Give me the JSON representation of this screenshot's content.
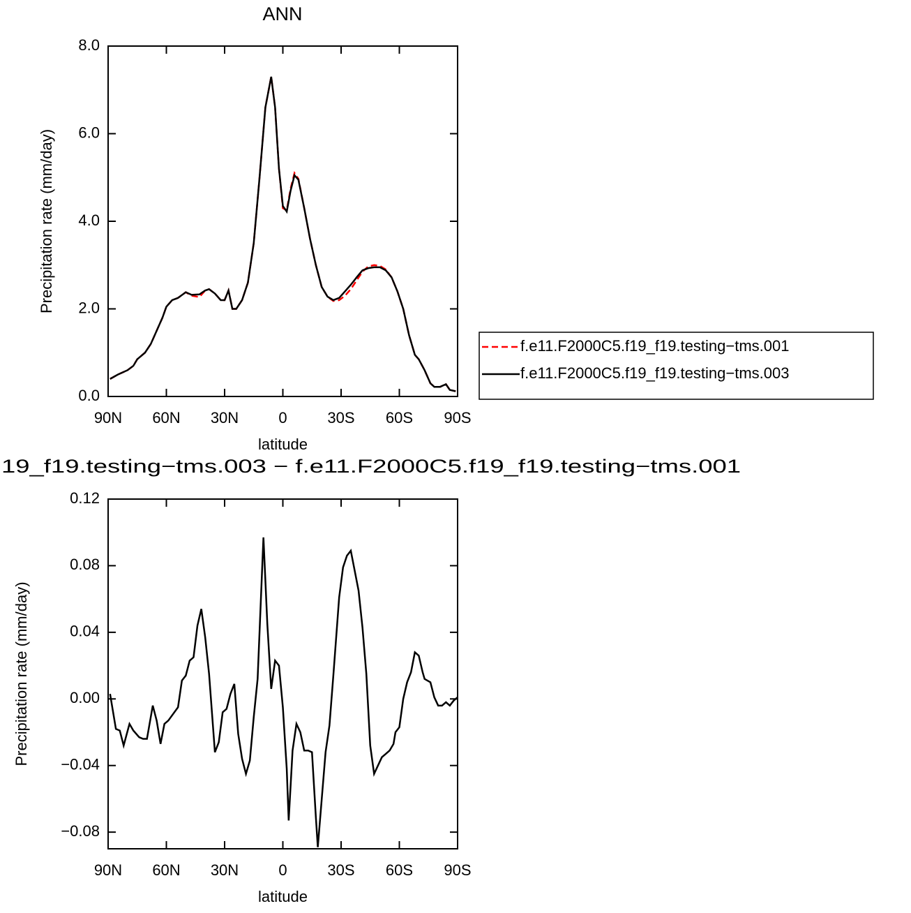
{
  "chart_data": [
    {
      "type": "line",
      "title": "ANN",
      "x_label": "latitude",
      "y_label": "Precipitation rate (mm/day)",
      "x": [
        89,
        85,
        80,
        77,
        75,
        71,
        68,
        65,
        62,
        60,
        57,
        54,
        50,
        47,
        43,
        40,
        38,
        35,
        32,
        30,
        28,
        26,
        24,
        21,
        18,
        15,
        12,
        9,
        6,
        4,
        2,
        0,
        -2,
        -4,
        -6,
        -8,
        -11,
        -14,
        -17,
        -20,
        -23,
        -26,
        -29,
        -32,
        -35,
        -38,
        -41,
        -44,
        -47,
        -50,
        -53,
        -56,
        -59,
        -62,
        -65,
        -68,
        -70,
        -73,
        -76,
        -78,
        -81,
        -84,
        -86,
        -89
      ],
      "series": [
        {
          "name": "f.e11.F2000C5.f19_f19.testing−tms.001",
          "color": "#ff0000",
          "style": "dashed",
          "values": [
            0.4,
            0.5,
            0.6,
            0.7,
            0.85,
            1.0,
            1.2,
            1.5,
            1.8,
            2.05,
            2.2,
            2.25,
            2.38,
            2.3,
            2.27,
            2.42,
            2.45,
            2.35,
            2.2,
            2.2,
            2.42,
            2.0,
            2.0,
            2.2,
            2.6,
            3.5,
            5.0,
            6.6,
            7.3,
            6.6,
            5.2,
            4.3,
            4.25,
            4.75,
            5.1,
            4.97,
            4.3,
            3.6,
            3.0,
            2.5,
            2.28,
            2.18,
            2.2,
            2.3,
            2.45,
            2.65,
            2.85,
            2.97,
            3.0,
            2.98,
            2.9,
            2.72,
            2.4,
            2.0,
            1.4,
            0.95,
            0.85,
            0.6,
            0.3,
            0.22,
            0.22,
            0.28,
            0.15,
            0.12
          ]
        },
        {
          "name": "f.e11.F2000C5.f19_f19.testing−tms.003",
          "color": "#000000",
          "style": "solid",
          "values": [
            0.4,
            0.5,
            0.6,
            0.7,
            0.85,
            1.0,
            1.2,
            1.5,
            1.8,
            2.05,
            2.2,
            2.25,
            2.38,
            2.32,
            2.33,
            2.42,
            2.45,
            2.35,
            2.2,
            2.2,
            2.42,
            2.0,
            2.0,
            2.2,
            2.6,
            3.5,
            5.0,
            6.6,
            7.3,
            6.6,
            5.2,
            4.35,
            4.22,
            4.7,
            5.05,
            4.95,
            4.3,
            3.6,
            3.0,
            2.5,
            2.28,
            2.2,
            2.25,
            2.4,
            2.55,
            2.72,
            2.88,
            2.93,
            2.95,
            2.95,
            2.88,
            2.72,
            2.4,
            2.0,
            1.4,
            0.95,
            0.85,
            0.6,
            0.3,
            0.22,
            0.22,
            0.28,
            0.15,
            0.12
          ]
        }
      ],
      "xlim": [
        90,
        -90
      ],
      "xticks": [
        {
          "value": 90,
          "label": "90N"
        },
        {
          "value": 60,
          "label": "60N"
        },
        {
          "value": 30,
          "label": "30N"
        },
        0,
        {
          "value": -30,
          "label": "30S"
        },
        {
          "value": -60,
          "label": "60S"
        },
        {
          "value": -90,
          "label": "90S"
        }
      ],
      "ylim": [
        0,
        8
      ],
      "yticks": [
        {
          "value": 0,
          "label": "0.0"
        },
        {
          "value": 2,
          "label": "2.0"
        },
        {
          "value": 4,
          "label": "4.0"
        },
        {
          "value": 6,
          "label": "6.0"
        },
        {
          "value": 8,
          "label": "8.0"
        }
      ],
      "legend": "right"
    },
    {
      "type": "line",
      "title": "19_f19.testing−tms.003 − f.e11.F2000C5.f19_f19.testing−tms.001",
      "x_label": "latitude",
      "y_label": "Precipitation rate (mm/day)",
      "x": [
        89,
        86,
        84,
        82,
        79,
        77,
        74,
        72,
        70,
        67,
        65,
        63,
        61,
        59,
        54,
        52,
        50,
        48,
        46,
        44,
        42,
        40,
        38,
        35,
        33,
        31,
        29,
        27,
        25,
        23,
        21,
        19,
        17,
        15,
        13,
        10,
        8,
        6,
        4,
        2,
        0,
        -2,
        -3,
        -5,
        -7,
        -9,
        -11,
        -13,
        -15,
        -17,
        -18,
        -22,
        -24,
        -26,
        -29,
        -31,
        -33,
        -35,
        -39,
        -41,
        -43,
        -45,
        -47,
        -49,
        -51,
        -53,
        -55,
        -57,
        -58,
        -60,
        -62,
        -64,
        -66,
        -68,
        -70,
        -72,
        -73,
        -76,
        -78,
        -80,
        -82,
        -84,
        -86,
        -88,
        -90
      ],
      "series": [
        {
          "color": "#000000",
          "style": "solid",
          "values": [
            0.003,
            -0.018,
            -0.019,
            -0.028,
            -0.015,
            -0.019,
            -0.023,
            -0.024,
            -0.024,
            -0.004,
            -0.013,
            -0.027,
            -0.015,
            -0.013,
            -0.005,
            0.011,
            0.014,
            0.023,
            0.025,
            0.044,
            0.054,
            0.037,
            0.015,
            -0.032,
            -0.026,
            -0.008,
            -0.006,
            0.003,
            0.009,
            -0.021,
            -0.036,
            -0.045,
            -0.037,
            -0.011,
            0.012,
            0.097,
            0.045,
            0.006,
            0.023,
            0.02,
            -0.005,
            -0.042,
            -0.073,
            -0.031,
            -0.015,
            -0.02,
            -0.031,
            -0.031,
            -0.032,
            -0.071,
            -0.089,
            -0.032,
            -0.016,
            0.014,
            0.061,
            0.079,
            0.086,
            0.089,
            0.065,
            0.043,
            0.015,
            -0.028,
            -0.045,
            -0.04,
            -0.035,
            -0.033,
            -0.031,
            -0.027,
            -0.02,
            -0.017,
            0.0,
            0.01,
            0.016,
            0.028,
            0.026,
            0.016,
            0.012,
            0.01,
            0.001,
            -0.004,
            -0.004,
            -0.002,
            -0.004,
            -0.001,
            0.001
          ]
        }
      ],
      "xlim": [
        90,
        -90
      ],
      "xticks": [
        {
          "value": 90,
          "label": "90N"
        },
        {
          "value": 60,
          "label": "60N"
        },
        {
          "value": 30,
          "label": "30N"
        },
        0,
        {
          "value": -30,
          "label": "30S"
        },
        {
          "value": -60,
          "label": "60S"
        },
        {
          "value": -90,
          "label": "90S"
        }
      ],
      "ylim": [
        -0.09,
        0.12
      ],
      "yticks": [
        {
          "value": -0.08,
          "label": "−0.08"
        },
        {
          "value": -0.04,
          "label": "−0.04"
        },
        {
          "value": 0,
          "label": "0.00"
        },
        0.04,
        0.08,
        0.12
      ]
    }
  ]
}
